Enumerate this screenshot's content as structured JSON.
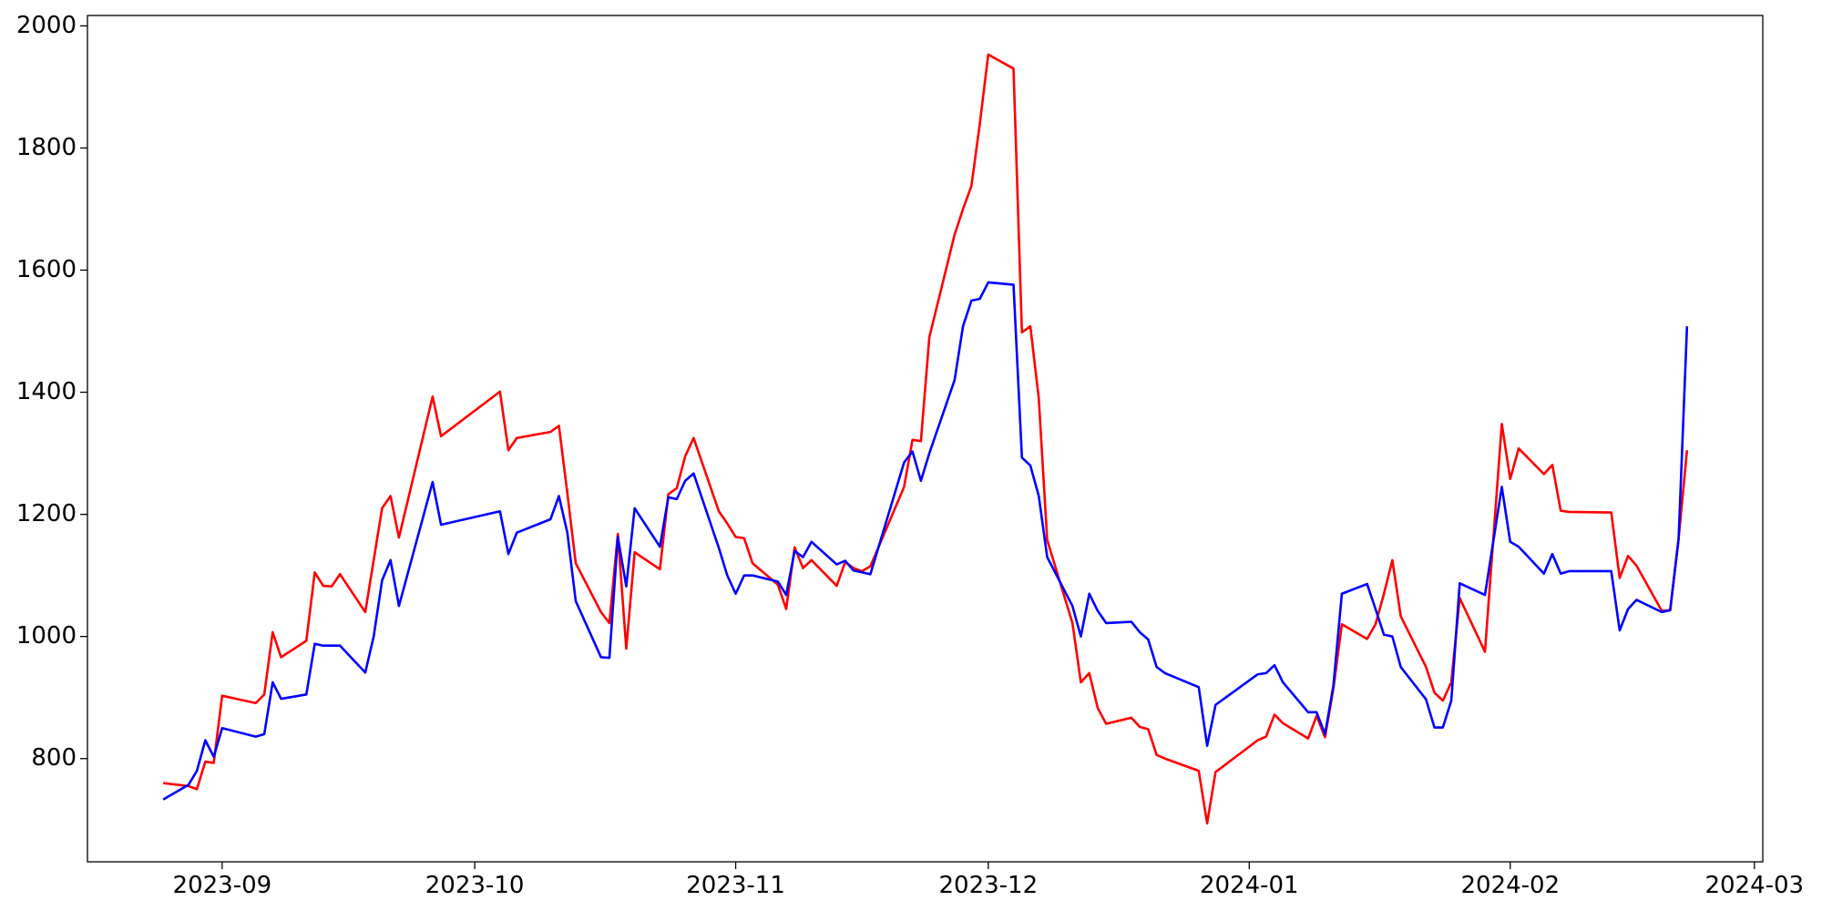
{
  "chart_data": {
    "type": "line",
    "x": [
      "2023-08-25",
      "2023-08-28",
      "2023-08-29",
      "2023-08-30",
      "2023-08-31",
      "2023-09-01",
      "2023-09-05",
      "2023-09-06",
      "2023-09-07",
      "2023-09-08",
      "2023-09-11",
      "2023-09-12",
      "2023-09-13",
      "2023-09-14",
      "2023-09-15",
      "2023-09-18",
      "2023-09-19",
      "2023-09-20",
      "2023-09-21",
      "2023-09-22",
      "2023-09-26",
      "2023-09-27",
      "2023-10-04",
      "2023-10-05",
      "2023-10-06",
      "2023-10-10",
      "2023-10-11",
      "2023-10-12",
      "2023-10-13",
      "2023-10-16",
      "2023-10-17",
      "2023-10-18",
      "2023-10-19",
      "2023-10-20",
      "2023-10-23",
      "2023-10-24",
      "2023-10-25",
      "2023-10-26",
      "2023-10-27",
      "2023-10-30",
      "2023-10-31",
      "2023-11-01",
      "2023-11-02",
      "2023-11-03",
      "2023-11-06",
      "2023-11-07",
      "2023-11-08",
      "2023-11-09",
      "2023-11-10",
      "2023-11-13",
      "2023-11-14",
      "2023-11-15",
      "2023-11-16",
      "2023-11-17",
      "2023-11-21",
      "2023-11-22",
      "2023-11-23",
      "2023-11-24",
      "2023-11-27",
      "2023-11-28",
      "2023-11-29",
      "2023-11-30",
      "2023-12-01",
      "2023-12-04",
      "2023-12-05",
      "2023-12-06",
      "2023-12-07",
      "2023-12-08",
      "2023-12-11",
      "2023-12-12",
      "2023-12-13",
      "2023-12-14",
      "2023-12-15",
      "2023-12-18",
      "2023-12-19",
      "2023-12-20",
      "2023-12-21",
      "2023-12-22",
      "2023-12-26",
      "2023-12-27",
      "2023-12-28",
      "2024-01-02",
      "2024-01-03",
      "2024-01-04",
      "2024-01-05",
      "2024-01-08",
      "2024-01-09",
      "2024-01-10",
      "2024-01-11",
      "2024-01-12",
      "2024-01-15",
      "2024-01-16",
      "2024-01-17",
      "2024-01-18",
      "2024-01-19",
      "2024-01-22",
      "2024-01-23",
      "2024-01-24",
      "2024-01-25",
      "2024-01-26",
      "2024-01-29",
      "2024-01-31",
      "2024-02-01",
      "2024-02-02",
      "2024-02-05",
      "2024-02-06",
      "2024-02-07",
      "2024-02-08",
      "2024-02-13",
      "2024-02-14",
      "2024-02-15",
      "2024-02-16",
      "2024-02-19",
      "2024-02-20",
      "2024-02-21",
      "2024-02-22"
    ],
    "series": [
      {
        "color": "#ff0000",
        "values": [
          760,
          755,
          750,
          795,
          793,
          903,
          891,
          905,
          1007,
          966,
          993,
          1105,
          1083,
          1082,
          1102,
          1040,
          1125,
          1210,
          1230,
          1162,
          1393,
          1328,
          1401,
          1305,
          1325,
          1335,
          1345,
          1235,
          1120,
          1040,
          1022,
          1168,
          980,
          1138,
          1110,
          1233,
          1243,
          1295,
          1325,
          1205,
          1185,
          1163,
          1161,
          1120,
          1085,
          1045,
          1146,
          1112,
          1125,
          1083,
          1122,
          1112,
          1107,
          1115,
          1245,
          1322,
          1320,
          1490,
          1658,
          1700,
          1738,
          1840,
          1953,
          1930,
          1498,
          1508,
          1390,
          1158,
          1022,
          925,
          940,
          883,
          857,
          867,
          852,
          848,
          806,
          800,
          780,
          694,
          778,
          830,
          836,
          872,
          858,
          833,
          870,
          835,
          915,
          1020,
          996,
          1020,
          1070,
          1125,
          1033,
          950,
          908,
          895,
          925,
          1063,
          975,
          1348,
          1258,
          1308,
          1266,
          1281,
          1206,
          1204,
          1203,
          1096,
          1132,
          1116,
          1042,
          1043,
          1160,
          1305
        ]
      },
      {
        "color": "#0000ff",
        "values": [
          733,
          757,
          780,
          830,
          803,
          850,
          836,
          840,
          925,
          898,
          905,
          988,
          985,
          985,
          985,
          941,
          1000,
          1092,
          1125,
          1050,
          1253,
          1183,
          1205,
          1135,
          1170,
          1192,
          1230,
          1170,
          1058,
          966,
          965,
          1163,
          1082,
          1210,
          1147,
          1228,
          1225,
          1255,
          1267,
          1145,
          1100,
          1070,
          1100,
          1100,
          1090,
          1068,
          1140,
          1130,
          1155,
          1118,
          1124,
          1108,
          1105,
          1102,
          1285,
          1303,
          1255,
          1300,
          1420,
          1508,
          1550,
          1553,
          1580,
          1576,
          1293,
          1280,
          1230,
          1130,
          1050,
          1000,
          1070,
          1042,
          1022,
          1024,
          1007,
          995,
          950,
          940,
          917,
          821,
          888,
          938,
          940,
          953,
          925,
          876,
          876,
          840,
          920,
          1070,
          1086,
          1045,
          1003,
          1000,
          950,
          897,
          851,
          851,
          895,
          1087,
          1068,
          1245,
          1155,
          1147,
          1103,
          1135,
          1103,
          1107,
          1107,
          1010,
          1045,
          1060,
          1040,
          1043,
          1160,
          1508
        ]
      }
    ],
    "xlim": [
      "2023-08-16",
      "2024-03-02"
    ],
    "xticks": [
      {
        "value": "2023-09-01",
        "label": "2023-09"
      },
      {
        "value": "2023-10-01",
        "label": "2023-10"
      },
      {
        "value": "2023-11-01",
        "label": "2023-11"
      },
      {
        "value": "2023-12-01",
        "label": "2023-12"
      },
      {
        "value": "2024-01-01",
        "label": "2024-01"
      },
      {
        "value": "2024-02-01",
        "label": "2024-02"
      },
      {
        "value": "2024-03-01",
        "label": "2024-03"
      }
    ],
    "ylim": [
      631,
      2017
    ],
    "yticks": [
      800,
      1000,
      1200,
      1400,
      1600,
      1800,
      2000
    ]
  }
}
